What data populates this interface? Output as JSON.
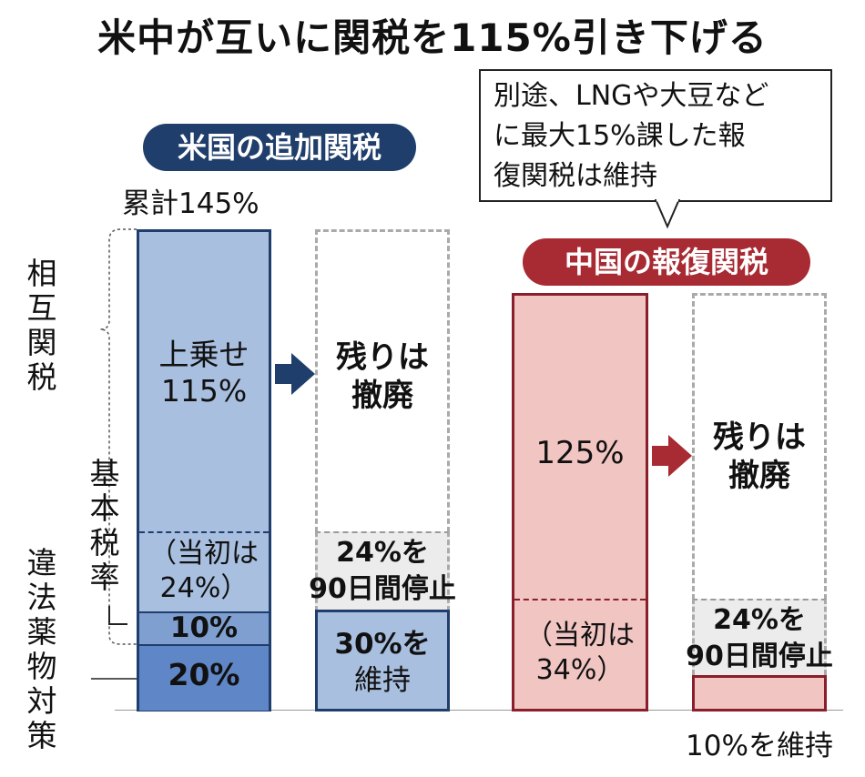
{
  "title": "米中が互いに関税を115%引き下げる",
  "us": {
    "header": "米国の追加関税",
    "cumulative": "累計145%",
    "side_labels": {
      "reciprocal": [
        "相",
        "互",
        "関",
        "税"
      ],
      "base_rate": [
        "基",
        "本",
        "税",
        "率"
      ],
      "drug_measures": [
        "違",
        "法",
        "薬",
        "物",
        "対",
        "策"
      ]
    },
    "surcharge_line1": "上乗せ",
    "surcharge_line2": "115%",
    "initial_line1": "（当初は",
    "initial_line2": "24%）",
    "ten": "10%",
    "twenty": "20%",
    "abolished_line1": "残りは",
    "abolished_line2": "撤廃",
    "suspend_line1": "24%を",
    "suspend_line2": "90日間停止",
    "keep_line1": "30%を",
    "keep_line2": "維持"
  },
  "china": {
    "header": "中国の報復関税",
    "callout_lines": [
      "別途、LNGや大豆など",
      "に最大15%課した報",
      "復関税は維持"
    ],
    "main": "125%",
    "initial_line1": "（当初は",
    "initial_line2": "34%）",
    "abolished_line1": "残りは",
    "abolished_line2": "撤廃",
    "suspend_line1": "24%を",
    "suspend_line2": "90日間停止",
    "keep": "10%を維持"
  },
  "colors": {
    "us_dark": "#1f3e6b",
    "us_fill": "#a8bfe0",
    "us_fill_mid": "#7f9fd0",
    "us_fill_dark": "#5f86c6",
    "cn_dark": "#8a1e2a",
    "cn_fill": "#f0c5c2",
    "cn_accent": "#a82a33"
  }
}
